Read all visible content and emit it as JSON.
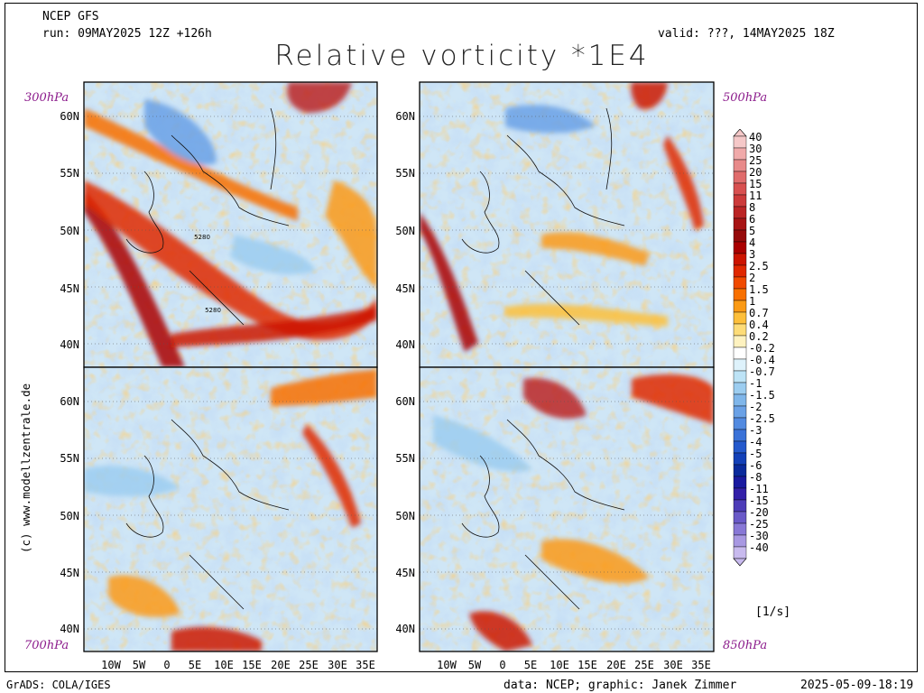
{
  "header": {
    "model": "NCEP GFS",
    "run": "run: 09MAY2025 12Z +126h",
    "valid": "valid: ???, 14MAY2025 18Z",
    "title": "Relative vorticity *1E4"
  },
  "panels": [
    {
      "id": "p300",
      "level": "300hPa",
      "contour_labels": [
        "5280",
        "5280"
      ]
    },
    {
      "id": "p500",
      "level": "500hPa"
    },
    {
      "id": "p700",
      "level": "700hPa"
    },
    {
      "id": "p850",
      "level": "850hPa"
    }
  ],
  "latitude_labels": [
    "60N",
    "55N",
    "50N",
    "45N",
    "40N"
  ],
  "longitude_labels": [
    "10W",
    "5W",
    "0",
    "5E",
    "10E",
    "15E",
    "20E",
    "25E",
    "30E",
    "35E"
  ],
  "credit": "(c) www.modellzentrale.de",
  "colorbar": {
    "units": "[1/s]",
    "levels": [
      "40",
      "30",
      "25",
      "20",
      "15",
      "11",
      "8",
      "6",
      "5",
      "4",
      "3",
      "2.5",
      "2",
      "1.5",
      "1",
      "0.7",
      "0.4",
      "0.2",
      "-0.2",
      "-0.4",
      "-0.7",
      "-1",
      "-1.5",
      "-2",
      "-2.5",
      "-3",
      "-4",
      "-5",
      "-6",
      "-8",
      "-11",
      "-15",
      "-20",
      "-25",
      "-30",
      "-40"
    ],
    "colors": [
      "#f5c8c8",
      "#f0aaaa",
      "#e88a8a",
      "#e06c6c",
      "#d85050",
      "#cc3a3a",
      "#bb2424",
      "#a81414",
      "#960a0a",
      "#aa0000",
      "#cc1400",
      "#e02800",
      "#f04a00",
      "#f87000",
      "#fb9a14",
      "#fdbf3a",
      "#fddc78",
      "#fef2c0",
      "#ffffff",
      "#def2fb",
      "#bde3f6",
      "#9ccdf0",
      "#7fb6ea",
      "#6aa1e6",
      "#528ae0",
      "#3a72d8",
      "#2459cc",
      "#1340b8",
      "#0a2a9c",
      "#1a1aa0",
      "#3320a8",
      "#4d3cb8",
      "#6a5ac8",
      "#8878d6",
      "#a898e2",
      "#c8baee"
    ]
  },
  "footer": {
    "left": "GrADS: COLA/IGES",
    "data": "data: NCEP; graphic: Janek Zimmer",
    "timestamp": "2025-05-09-18:19"
  }
}
